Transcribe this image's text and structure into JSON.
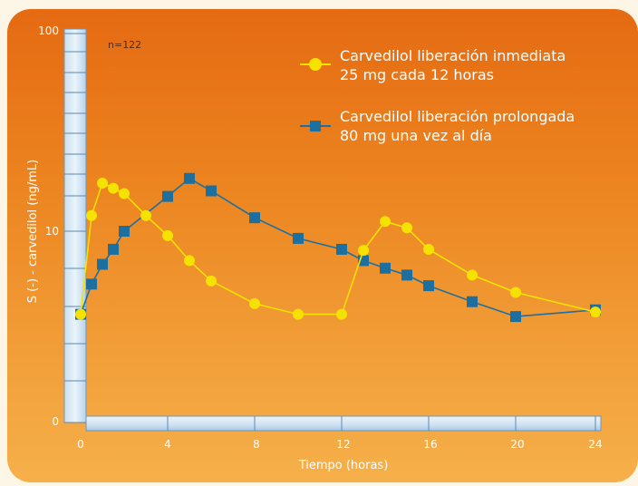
{
  "chart_data": {
    "type": "line",
    "xlabel": "Tiempo (horas)",
    "ylabel": "S (-) - carvedilol (ng/mL)",
    "annotation": "n=122",
    "x_ticks": [
      "0",
      "4",
      "8",
      "12",
      "16",
      "20",
      "24"
    ],
    "y_ticks": [
      "0",
      "10",
      "100"
    ],
    "y_scale": "log",
    "xlim": [
      0,
      24
    ],
    "grid": false,
    "legend_position": "top-right",
    "series": [
      {
        "name": "Carvedilol liberación inmediata",
        "name_line2": "25 mg cada 12 horas",
        "marker": "circle",
        "color": "#f5e200",
        "x": [
          0,
          0.5,
          1,
          1.5,
          2,
          3,
          4,
          5,
          6,
          8,
          10,
          12,
          13,
          14,
          15,
          16,
          18,
          20,
          24
        ],
        "y": [
          3.8,
          12,
          17.5,
          16.5,
          15.5,
          12,
          9.5,
          7.1,
          5.6,
          4.3,
          3.8,
          3.8,
          8.0,
          11.2,
          10.4,
          8.1,
          6.0,
          4.9,
          3.9
        ]
      },
      {
        "name": "Carvedilol liberación prolongada",
        "name_line2": "80 mg una vez al día",
        "marker": "square",
        "color": "#1d6fa0",
        "x": [
          0,
          0.5,
          1,
          1.5,
          2,
          4,
          5,
          6,
          8,
          10,
          12,
          13,
          14,
          15,
          16,
          18,
          20,
          24
        ],
        "y": [
          3.8,
          5.4,
          6.8,
          8.1,
          10,
          15,
          18.5,
          16,
          11.7,
          9.2,
          8.1,
          7.1,
          6.5,
          6.0,
          5.3,
          4.4,
          3.7,
          4.0
        ]
      }
    ]
  }
}
